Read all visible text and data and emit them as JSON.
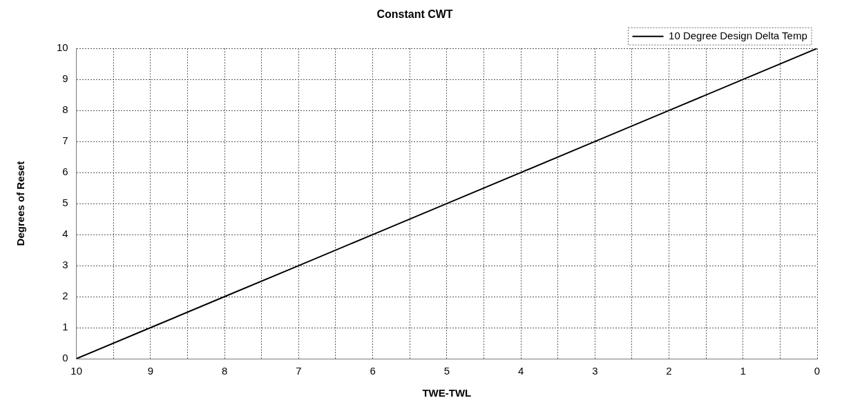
{
  "chart_data": {
    "type": "line",
    "title": "Constant CWT",
    "xlabel": "TWE-TWL",
    "ylabel": "Degrees of Reset",
    "x": [
      10,
      9,
      8,
      7,
      6,
      5,
      4,
      3,
      2,
      1,
      0
    ],
    "series": [
      {
        "name": "10 Degree Design Delta Temp",
        "color": "#000000",
        "values": [
          0,
          1,
          2,
          3,
          4,
          5,
          6,
          7,
          8,
          9,
          10
        ]
      }
    ],
    "xlim": [
      10,
      0
    ],
    "xticks": [
      10,
      {
        "value": 9.5,
        "label": null
      },
      9,
      {
        "value": 8.5,
        "label": null
      },
      8,
      {
        "value": 7.5,
        "label": null
      },
      7,
      {
        "value": 6.5,
        "label": null
      },
      6,
      {
        "value": 5.5,
        "label": null
      },
      5,
      {
        "value": 4.5,
        "label": null
      },
      4,
      {
        "value": 3.5,
        "label": null
      },
      3,
      {
        "value": 2.5,
        "label": null
      },
      2,
      {
        "value": 1.5,
        "label": null
      },
      1,
      {
        "value": 0.5,
        "label": null
      },
      0
    ],
    "ylim": [
      0,
      10
    ],
    "yticks": [
      0,
      1,
      2,
      3,
      4,
      5,
      6,
      7,
      8,
      9,
      10
    ],
    "grid": true,
    "legend": "top right",
    "marker": "none",
    "line_style": "solid"
  }
}
